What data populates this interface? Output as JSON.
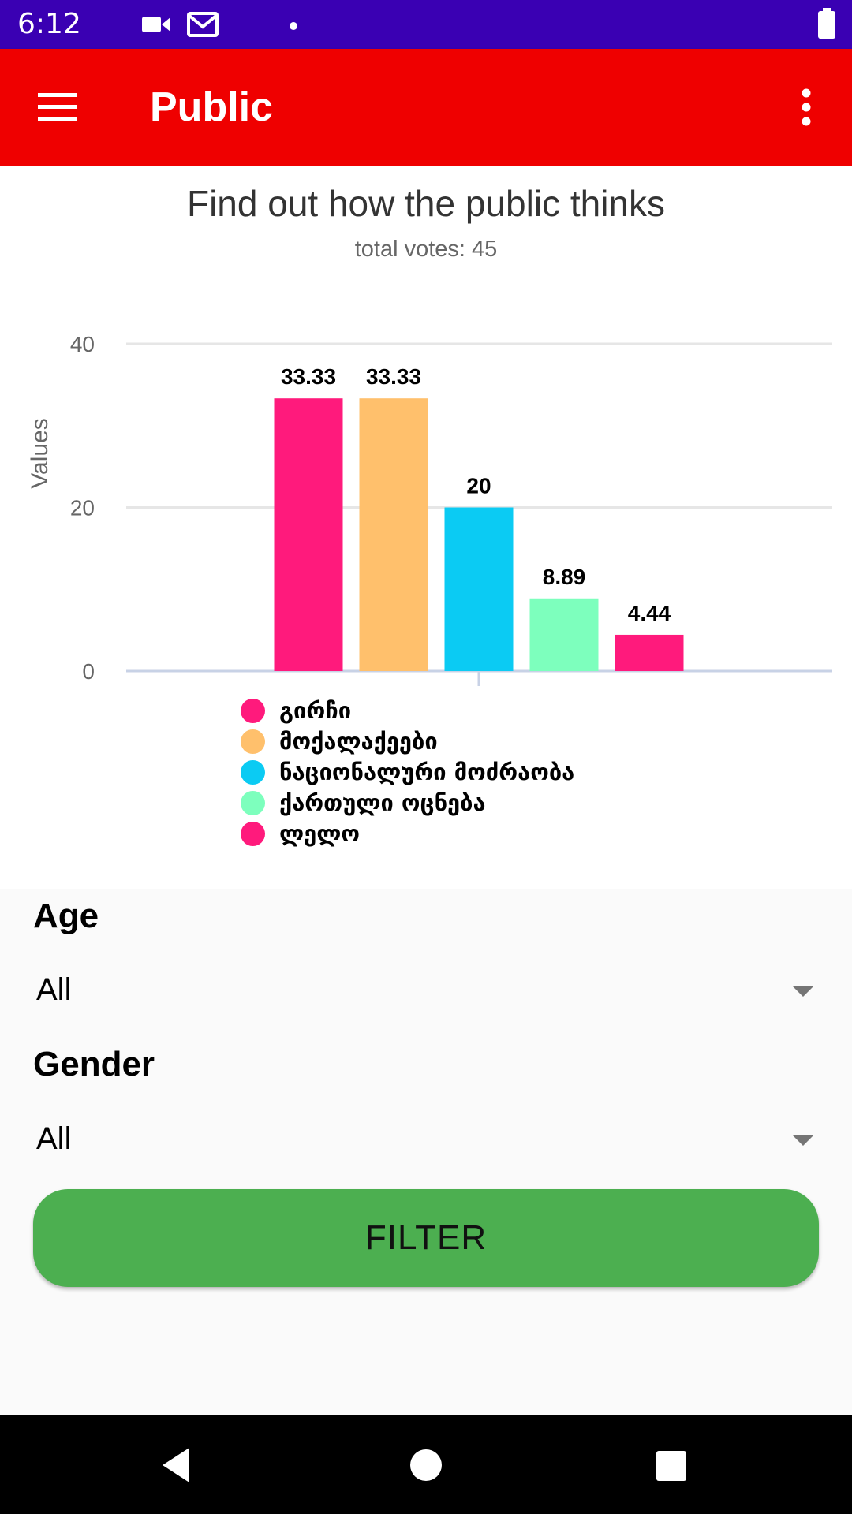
{
  "status_bar": {
    "time": "6:12",
    "icons": [
      "video-icon",
      "gmail-icon",
      "notification-dot-icon",
      "battery-icon"
    ]
  },
  "app_bar": {
    "title": "Public",
    "menu_icon": "hamburger-menu-icon",
    "overflow_icon": "more-vert-icon",
    "color": "#ef0000"
  },
  "chart": {
    "title": "Find out how the public thinks",
    "subtitle": "total votes: 45"
  },
  "chart_data": {
    "type": "bar",
    "categories": [
      "0"
    ],
    "ylabel": "Values",
    "xlabel": "",
    "ylim": [
      0,
      40
    ],
    "yticks": [
      "0",
      "20",
      "40"
    ],
    "grid": true,
    "legend": "bottom",
    "series": [
      {
        "name": "გირჩი",
        "value": 33.33,
        "label": "33.33",
        "color": "#ff1a7c"
      },
      {
        "name": "მოქალაქეები",
        "value": 33.33,
        "label": "33.33",
        "color": "#ffc06c"
      },
      {
        "name": "ნაციონალური მოძრაობა",
        "value": 20,
        "label": "20",
        "color": "#0bcbf3"
      },
      {
        "name": "ქართული ოცნება",
        "value": 8.89,
        "label": "8.89",
        "color": "#7dffbd"
      },
      {
        "name": "ლელო",
        "value": 4.44,
        "label": "4.44",
        "color": "#ff1a7c"
      }
    ]
  },
  "filters": {
    "age": {
      "label": "Age",
      "value": "All"
    },
    "gender": {
      "label": "Gender",
      "value": "All"
    },
    "button_label": "FILTER",
    "button_color": "#4caf50"
  },
  "nav_bar": {
    "icons": [
      "back-icon",
      "home-icon",
      "recents-icon"
    ]
  }
}
